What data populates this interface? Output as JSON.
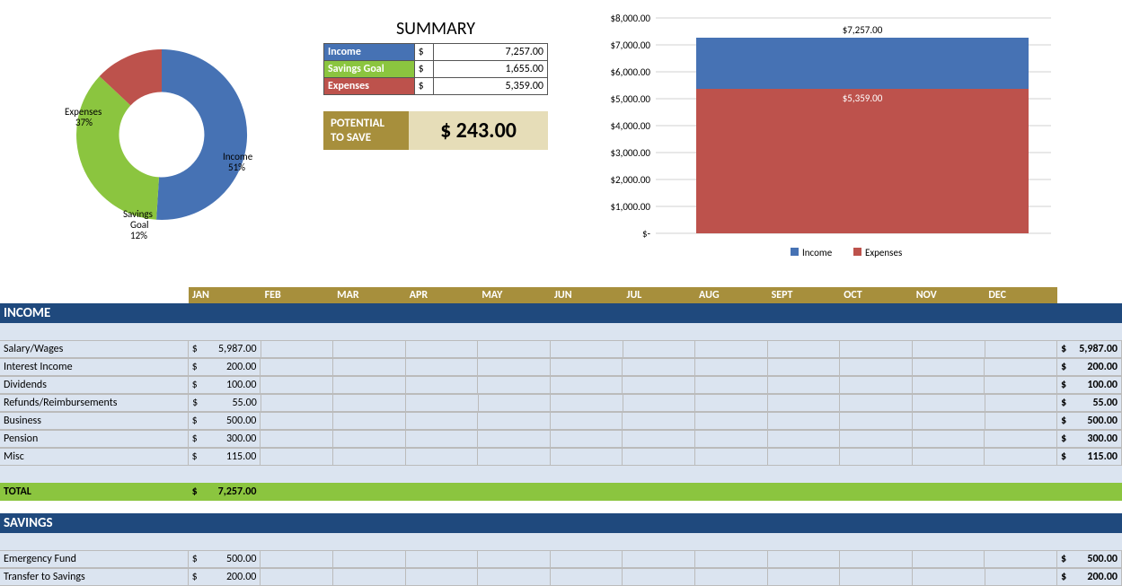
{
  "summary": {
    "title": "SUMMARY",
    "rows": [
      {
        "label": "Income",
        "currency": "$",
        "value": "7,257.00",
        "color": "#4672b4"
      },
      {
        "label": "Savings Goal",
        "currency": "$",
        "value": "1,655.00",
        "color": "#8bc53f"
      },
      {
        "label": "Expenses",
        "currency": "$",
        "value": "5,359.00",
        "color": "#bd524c"
      }
    ],
    "potential_label_line1": "POTENTIAL",
    "potential_label_line2": "TO SAVE",
    "potential_value": "$   243.00"
  },
  "donut": {
    "type": "donut",
    "slices": [
      {
        "label": "Income",
        "pct": "51%",
        "value": 51,
        "color": "#4672b4"
      },
      {
        "label": "Savings Goal",
        "pct": "12%",
        "value": 12,
        "color": "#8bc53f"
      },
      {
        "label": "Expenses",
        "pct": "37%",
        "value": 37,
        "color": "#bd524c"
      }
    ],
    "inner_radius_ratio": 0.5,
    "background_color": "#ffffff",
    "label_fontsize": 11,
    "label_color": "#000000"
  },
  "barchart": {
    "type": "stacked-bar",
    "ylim": [
      0,
      8000
    ],
    "ytick_step": 1000,
    "ytick_labels": [
      "$-",
      "$1,000.00",
      "$2,000.00",
      "$3,000.00",
      "$4,000.00",
      "$5,000.00",
      "$6,000.00",
      "$7,000.00",
      "$8,000.00"
    ],
    "series": [
      {
        "name": "Income",
        "value": 7257,
        "label": "$7,257.00",
        "color": "#4672b4"
      },
      {
        "name": "Expenses",
        "value": 5359,
        "label": "$5,359.00",
        "color": "#bd524c"
      }
    ],
    "grid_color": "#d0d0d0",
    "axis_color": "#888888",
    "label_fontsize": 11,
    "legend_position": "bottom",
    "legend_items": [
      {
        "name": "Income",
        "color": "#4672b4"
      },
      {
        "name": "Expenses",
        "color": "#bd524c"
      }
    ]
  },
  "months": [
    "JAN",
    "FEB",
    "MAR",
    "APR",
    "MAY",
    "JUN",
    "JUL",
    "AUG",
    "SEPT",
    "OCT",
    "NOV",
    "DEC"
  ],
  "income": {
    "header": "INCOME",
    "rows": [
      {
        "label": "Salary/Wages",
        "jan": "5,987.00",
        "total": "5,987.00"
      },
      {
        "label": "Interest Income",
        "jan": "200.00",
        "total": "200.00"
      },
      {
        "label": "Dividends",
        "jan": "100.00",
        "total": "100.00"
      },
      {
        "label": "Refunds/Reimbursements",
        "jan": "55.00",
        "total": "55.00"
      },
      {
        "label": "Business",
        "jan": "500.00",
        "total": "500.00"
      },
      {
        "label": "Pension",
        "jan": "300.00",
        "total": "300.00"
      },
      {
        "label": "Misc",
        "jan": "115.00",
        "total": "115.00"
      }
    ],
    "total_label": "TOTAL",
    "total_jan": "7,257.00"
  },
  "savings": {
    "header": "SAVINGS",
    "rows": [
      {
        "label": "Emergency Fund",
        "jan": "500.00",
        "total": "500.00"
      },
      {
        "label": "Transfer to Savings",
        "jan": "200.00",
        "total": "200.00"
      }
    ]
  },
  "currency": "$",
  "colors": {
    "header_blue": "#1f497d",
    "header_gold": "#a78f3c",
    "row_bg": "#dbe4f0",
    "total_green": "#8bc53f",
    "grid_border": "#bbbbbb"
  }
}
